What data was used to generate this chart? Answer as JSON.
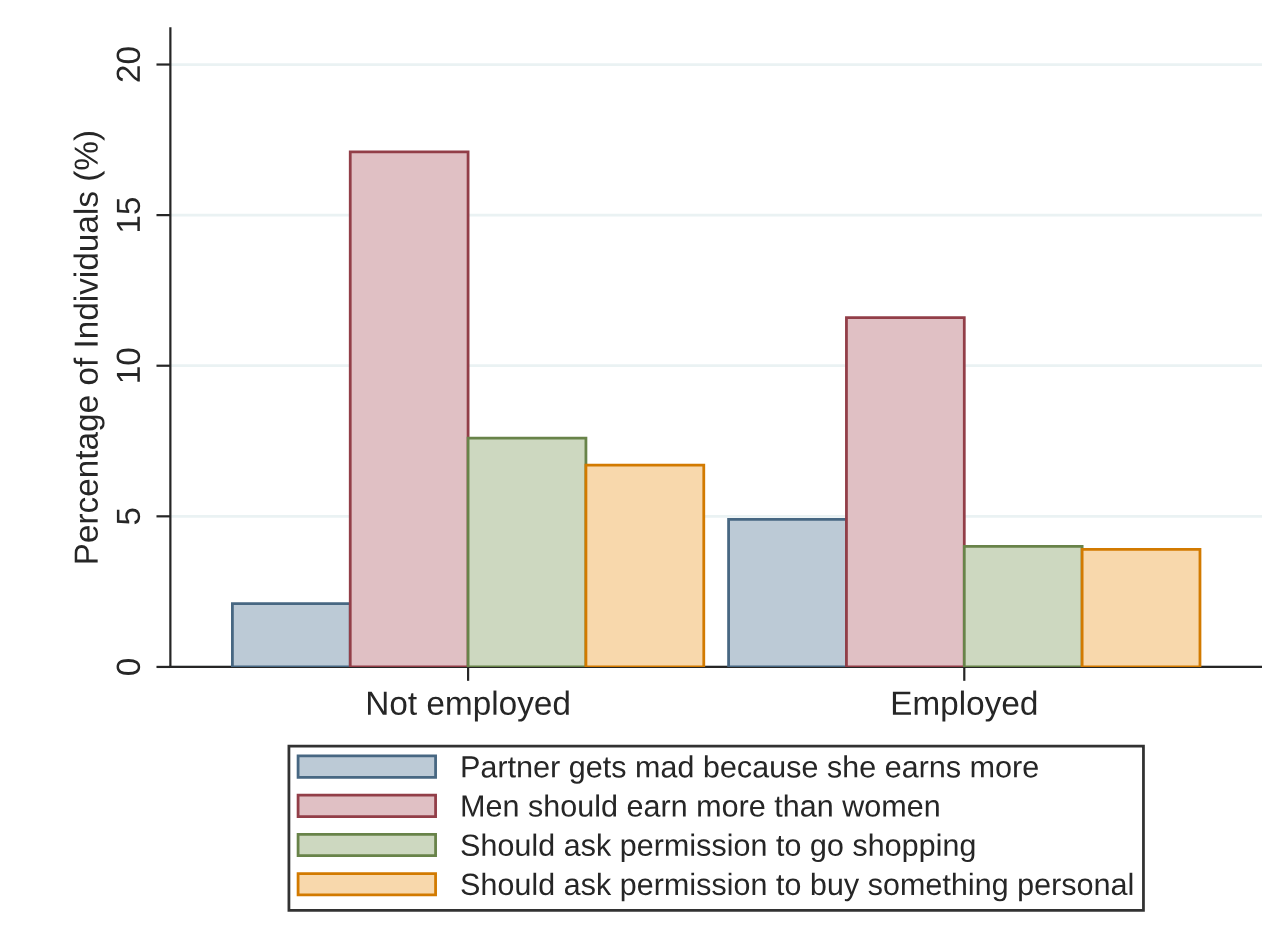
{
  "chart_data": {
    "type": "bar",
    "ylabel": "Percentage of Individuals (%)",
    "categories": [
      "Not employed",
      "Employed"
    ],
    "series": [
      {
        "name": "Partner gets mad because she earns more",
        "color": "#bccad6",
        "values": [
          2.1,
          4.9
        ]
      },
      {
        "name": "Men should earn more than women",
        "color": "#e0c0c4",
        "values": [
          17.1,
          11.6
        ]
      },
      {
        "name": "Should ask permission to go shopping",
        "color": "#cdd8c0",
        "values": [
          7.6,
          4.0
        ]
      },
      {
        "name": "Should ask permission to buy something personal",
        "color": "#f8d8ac",
        "values": [
          6.7,
          3.9
        ]
      }
    ],
    "ylim": [
      0,
      21.2
    ],
    "yticks": [
      0,
      5,
      10,
      15,
      20
    ],
    "grid": "y",
    "legend": "bottom"
  }
}
